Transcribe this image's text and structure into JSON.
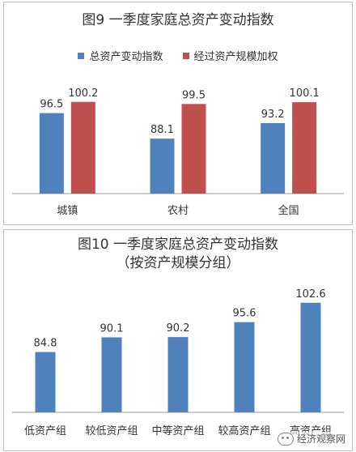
{
  "chart_data": [
    {
      "type": "bar",
      "title": "图9 一季度家庭总资产变动指数",
      "categories": [
        "城镇",
        "农村",
        "全国"
      ],
      "series": [
        {
          "name": "总资产变动指数",
          "values": [
            96.5,
            88.1,
            93.2
          ],
          "color": "#4f81bd"
        },
        {
          "name": "经过资产规模加权",
          "values": [
            100.2,
            99.5,
            100.1
          ],
          "color": "#c0504d"
        }
      ],
      "ylim": [
        70,
        102
      ],
      "grid": false,
      "legend_position": "top"
    },
    {
      "type": "bar",
      "title": "图10 一季度家庭总资产变动指数",
      "subtitle": "（按资产规模分组）",
      "categories": [
        "低资产组",
        "较低资产组",
        "中等资产组",
        "较高资产组",
        "高资产组"
      ],
      "series": [
        {
          "values": [
            84.8,
            90.1,
            90.2,
            95.6,
            102.6
          ],
          "color": "#4f81bd"
        }
      ],
      "ylim": [
        63,
        104
      ],
      "grid": false
    }
  ],
  "watermark": {
    "icon": "wechat-icon",
    "text": "经济观察网"
  }
}
